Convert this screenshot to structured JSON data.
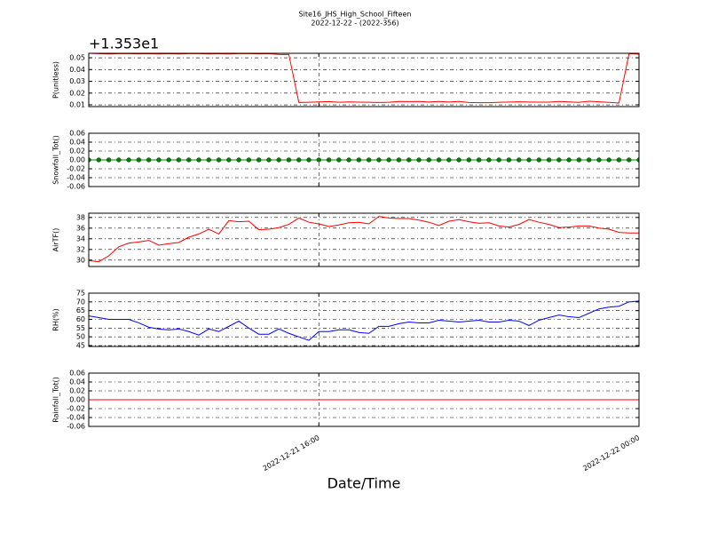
{
  "chart_data": [
    {
      "type": "line",
      "title": "Site16_JHS_High_School_Fifteen",
      "subtitle": "2022-12-22 - (2022-356)",
      "ylabel": "P(unitless)",
      "offset_label": "+1.353e1",
      "series": [
        {
          "color": "#ff0000",
          "markers": false,
          "values": [
            0.0538,
            0.0535,
            0.0532,
            0.0535,
            0.0535,
            0.0533,
            0.0535,
            0.0532,
            0.0535,
            0.0532,
            0.0535,
            0.0535,
            0.0532,
            0.0535,
            0.0532,
            0.0535,
            0.0535,
            0.0533,
            0.0535,
            0.0528,
            0.0528,
            0.012,
            0.0122,
            0.0125,
            0.0127,
            0.0122,
            0.0125,
            0.0123,
            0.0122,
            0.012,
            0.0122,
            0.0128,
            0.0127,
            0.0128,
            0.0124,
            0.0128,
            0.0124,
            0.0128,
            0.012,
            0.0118,
            0.0118,
            0.0122,
            0.0124,
            0.0126,
            0.0124,
            0.0123,
            0.0123,
            0.0128,
            0.0125,
            0.0121,
            0.013,
            0.0126,
            0.0121,
            0.0115,
            0.0535,
            0.053
          ]
        }
      ],
      "ylim": [
        0.0085,
        0.0538
      ],
      "yticks": [
        0.01,
        0.02,
        0.03,
        0.04,
        0.05
      ],
      "grid": true
    },
    {
      "type": "line",
      "ylabel": "Snowfall_Tot()",
      "series": [
        {
          "color": "#008000",
          "markers": true,
          "values": [
            0,
            0,
            0,
            0,
            0,
            0,
            0,
            0,
            0,
            0,
            0,
            0,
            0,
            0,
            0,
            0,
            0,
            0,
            0,
            0,
            0,
            0,
            0,
            0,
            0,
            0,
            0,
            0,
            0,
            0,
            0,
            0,
            0,
            0,
            0,
            0,
            0,
            0,
            0,
            0,
            0,
            0,
            0,
            0,
            0,
            0,
            0,
            0,
            0,
            0,
            0,
            0,
            0,
            0,
            0,
            0
          ]
        }
      ],
      "ylim": [
        -0.06,
        0.06
      ],
      "yticks": [
        -0.06,
        -0.04,
        -0.02,
        {
          "value": 0,
          "label": "0.00"
        },
        0.02,
        0.04,
        0.06
      ],
      "grid": true
    },
    {
      "type": "line",
      "ylabel": "AirTF()",
      "series": [
        {
          "color": "#ff0000",
          "markers": false,
          "values": [
            29.9,
            29.7,
            30.8,
            32.5,
            33.2,
            33.4,
            33.7,
            32.8,
            33.1,
            33.3,
            34.3,
            34.9,
            35.8,
            34.9,
            37.4,
            37.2,
            37.3,
            35.7,
            35.8,
            36.1,
            36.7,
            37.9,
            37.1,
            36.8,
            36.3,
            36.6,
            37.0,
            37.1,
            36.8,
            38.2,
            37.9,
            37.8,
            37.8,
            37.5,
            37.1,
            36.5,
            37.3,
            37.6,
            37.2,
            36.9,
            37.0,
            36.4,
            36.2,
            36.7,
            37.6,
            37.1,
            36.7,
            36.1,
            36.2,
            36.4,
            36.4,
            36.0,
            35.8,
            35.2,
            35.1,
            35.1
          ]
        }
      ],
      "ylim": [
        28.8,
        38.8
      ],
      "yticks": [
        30,
        32,
        34,
        36,
        38
      ],
      "grid": true
    },
    {
      "type": "line",
      "ylabel": "RH(%)",
      "series": [
        {
          "color": "#0000ff",
          "markers": false,
          "values": [
            62,
            61,
            60,
            60,
            60,
            58,
            55.5,
            54.5,
            54,
            54.5,
            53,
            51,
            54.5,
            53,
            56,
            59,
            55,
            51.5,
            51.5,
            54.5,
            52,
            50,
            48,
            53,
            53,
            54,
            54,
            52.5,
            52,
            56,
            56,
            57.5,
            58.5,
            58,
            58,
            59.5,
            59,
            58.5,
            59,
            59.5,
            58.5,
            58.5,
            59.5,
            59,
            56.5,
            59.5,
            61,
            62.5,
            61.5,
            61,
            63.5,
            66,
            67,
            67.5,
            70,
            70.5
          ]
        }
      ],
      "ylim": [
        44.5,
        75
      ],
      "yticks": [
        45,
        50,
        55,
        60,
        65,
        70,
        75
      ],
      "grid": true
    },
    {
      "type": "line",
      "ylabel": "Rainfall_Tot()",
      "xlabel": "Date/Time",
      "x": [
        "2022-12-21 10:15",
        "2022-12-21 10:30",
        "2022-12-21 10:45",
        "2022-12-21 11:00",
        "2022-12-21 11:15",
        "2022-12-21 11:30",
        "2022-12-21 11:45",
        "2022-12-21 12:00",
        "2022-12-21 12:15",
        "2022-12-21 12:30",
        "2022-12-21 12:45",
        "2022-12-21 13:00",
        "2022-12-21 13:15",
        "2022-12-21 13:30",
        "2022-12-21 13:45",
        "2022-12-21 14:00",
        "2022-12-21 14:15",
        "2022-12-21 14:30",
        "2022-12-21 14:45",
        "2022-12-21 15:00",
        "2022-12-21 15:15",
        "2022-12-21 15:30",
        "2022-12-21 15:45",
        "2022-12-21 16:00",
        "2022-12-21 16:15",
        "2022-12-21 16:30",
        "2022-12-21 16:45",
        "2022-12-21 17:00",
        "2022-12-21 17:15",
        "2022-12-21 17:30",
        "2022-12-21 17:45",
        "2022-12-21 18:00",
        "2022-12-21 18:15",
        "2022-12-21 18:30",
        "2022-12-21 18:45",
        "2022-12-21 19:00",
        "2022-12-21 19:15",
        "2022-12-21 19:30",
        "2022-12-21 19:45",
        "2022-12-21 20:00",
        "2022-12-21 20:15",
        "2022-12-21 20:30",
        "2022-12-21 20:45",
        "2022-12-21 21:00",
        "2022-12-21 21:15",
        "2022-12-21 21:30",
        "2022-12-21 21:45",
        "2022-12-21 22:00",
        "2022-12-21 22:15",
        "2022-12-21 22:30",
        "2022-12-21 22:45",
        "2022-12-21 23:00",
        "2022-12-21 23:15",
        "2022-12-21 23:30",
        "2022-12-21 23:45",
        "2022-12-22 00:00"
      ],
      "xlim": [
        "2022-12-21 10:15",
        "2022-12-22 00:00"
      ],
      "xticks": [
        "2022-12-21 16:00",
        "2022-12-22 00:00"
      ],
      "series": [
        {
          "color": "#ff0000",
          "markers": false,
          "values": [
            0,
            0,
            0,
            0,
            0,
            0,
            0,
            0,
            0,
            0,
            0,
            0,
            0,
            0,
            0,
            0,
            0,
            0,
            0,
            0,
            0,
            0,
            0,
            0,
            0,
            0,
            0,
            0,
            0,
            0,
            0,
            0,
            0,
            0,
            0,
            0,
            0,
            0,
            0,
            0,
            0,
            0,
            0,
            0,
            0,
            0,
            0,
            0,
            0,
            0,
            0,
            0,
            0,
            0,
            0,
            0
          ]
        }
      ],
      "ylim": [
        -0.06,
        0.06
      ],
      "yticks": [
        -0.06,
        -0.04,
        -0.02,
        {
          "value": 0,
          "label": "0.00"
        },
        0.02,
        0.04,
        0.06
      ],
      "grid": true
    }
  ]
}
